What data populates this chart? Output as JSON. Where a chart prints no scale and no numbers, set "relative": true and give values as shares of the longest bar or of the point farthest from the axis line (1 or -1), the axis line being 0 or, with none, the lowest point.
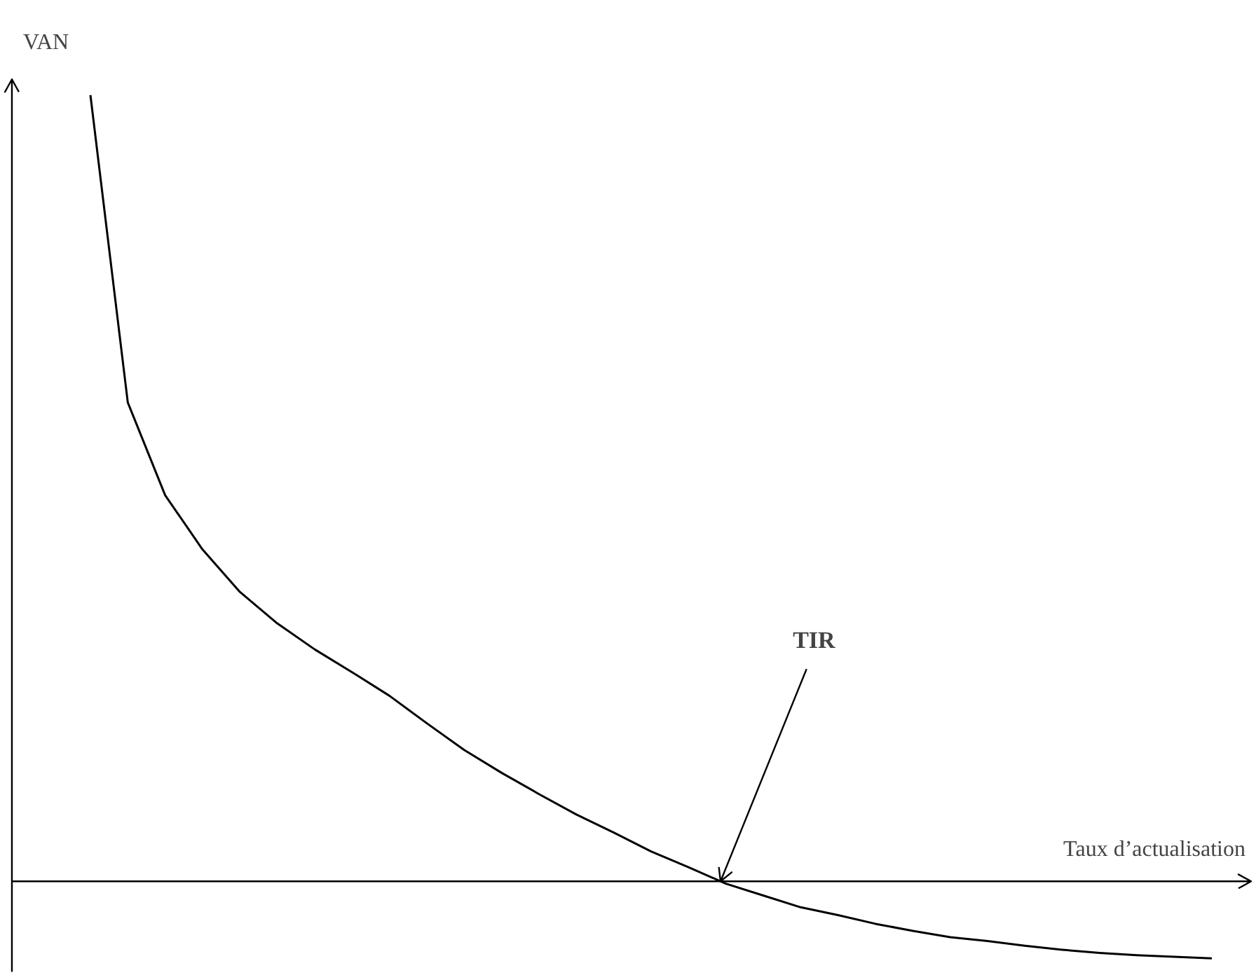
{
  "chart_data": {
    "type": "line",
    "relative": true,
    "xlabel": "Taux d’actualisation",
    "ylabel": "VAN",
    "color": "#000000",
    "categories": [
      null,
      null,
      null,
      null,
      null,
      null,
      null,
      null,
      null,
      null,
      null,
      null,
      null,
      null,
      null,
      null,
      null,
      null,
      null,
      null,
      null,
      null,
      null,
      null,
      null,
      null,
      null,
      null,
      null,
      null,
      null
    ],
    "values": [
      1.0,
      0.609,
      0.491,
      0.422,
      0.368,
      0.328,
      0.295,
      0.266,
      0.236,
      0.201,
      0.167,
      0.138,
      0.111,
      0.085,
      0.062,
      0.038,
      0.018,
      -0.003,
      -0.018,
      -0.033,
      -0.043,
      -0.054,
      -0.063,
      -0.071,
      -0.076,
      -0.082,
      -0.087,
      -0.091,
      -0.094,
      -0.096,
      -0.098
    ],
    "annotations": [
      "TIR"
    ]
  }
}
